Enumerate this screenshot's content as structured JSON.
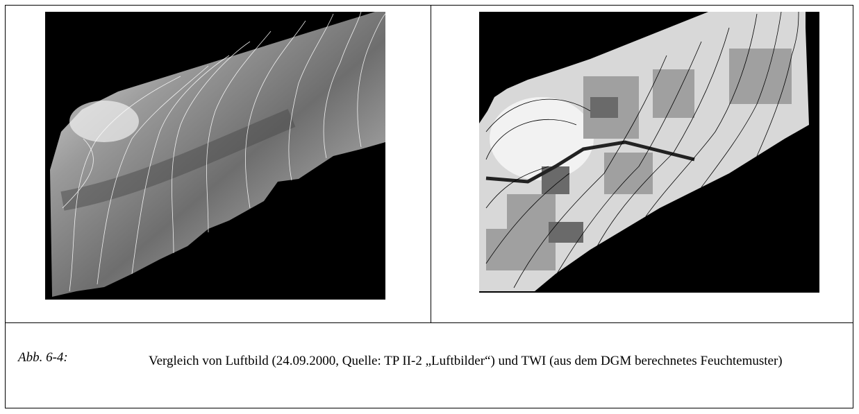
{
  "figure": {
    "label": "Abb. 6-4:",
    "caption": "Vergleich von Luftbild (24.09.2000, Quelle: TP II-2 „Luftbilder“) und TWI (aus dem DGM berechnetes Feuchtemuster)"
  }
}
